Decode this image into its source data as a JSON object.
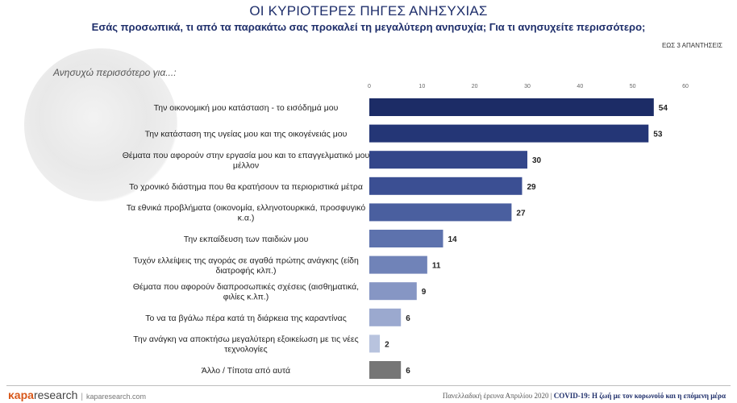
{
  "header": {
    "title": "ΟΙ ΚΥΡΙΟΤΕΡΕΣ ΠΗΓΕΣ ΑΝΗΣΥΧΙΑΣ",
    "subtitle": "Εσάς προσωπικά, τι από τα παρακάτω σας προκαλεί τη μεγαλύτερη ανησυχία; Για τι ανησυχείτε περισσότερο;",
    "note": "ΕΩΣ 3 ΑΠΑΝΤΗΣΕΙΣ",
    "question_label": "Ανησυχώ περισσότερο για...:"
  },
  "chart_data": {
    "type": "bar",
    "orientation": "horizontal",
    "xlim": [
      0,
      60
    ],
    "xticks": [
      0,
      10,
      20,
      30,
      40,
      50,
      60
    ],
    "grid": false,
    "categories": [
      [
        "Την οικονομική μου κατάσταση - το εισόδημά μου"
      ],
      [
        "Την κατάσταση της υγείας μου και της οικογένειάς μου"
      ],
      [
        "Θέματα που αφορούν στην εργασία μου και το επαγγελματικό μου",
        "μέλλον"
      ],
      [
        "Το χρονικό διάστημα που θα κρατήσουν τα περιοριστικά μέτρα"
      ],
      [
        "Τα εθνικά προβλήματα (οικονομία, ελληνοτουρκικά, προσφυγικό",
        "κ.α.)"
      ],
      [
        "Την εκπαίδευση των παιδιών μου"
      ],
      [
        "Τυχόν ελλείψεις της αγοράς σε αγαθά πρώτης ανάγκης (είδη",
        "διατροφής κλπ.)"
      ],
      [
        "Θέματα που αφορούν διαπροσωπικές σχέσεις (αισθηματικά,",
        "φιλίες κ.λπ.)"
      ],
      [
        "Το να τα βγάλω πέρα κατά τη διάρκεια της καραντίνας"
      ],
      [
        "Την ανάγκη να αποκτήσω μεγαλύτερη εξοικείωση με τις νέες",
        "τεχνολογίες"
      ],
      [
        "Άλλο / Τίποτα από αυτά"
      ]
    ],
    "values": [
      54,
      53,
      30,
      29,
      27,
      14,
      11,
      9,
      6,
      2,
      6
    ],
    "colors": [
      "#1c2c66",
      "#243676",
      "#33468a",
      "#3b4f93",
      "#4a5f9f",
      "#5d72ad",
      "#7083b8",
      "#8696c4",
      "#9ba9cf",
      "#b8c3de",
      "#767676"
    ]
  },
  "footer": {
    "logo_mark": "κapa",
    "logo_text": "research",
    "website": "kaparesearch.com",
    "survey": "Πανελλαδική έρευνα Απριλίου 2020 |",
    "topic": "COVID-19: Η ζωή με τον κορωνοϊό και η επόμενη μέρα"
  }
}
